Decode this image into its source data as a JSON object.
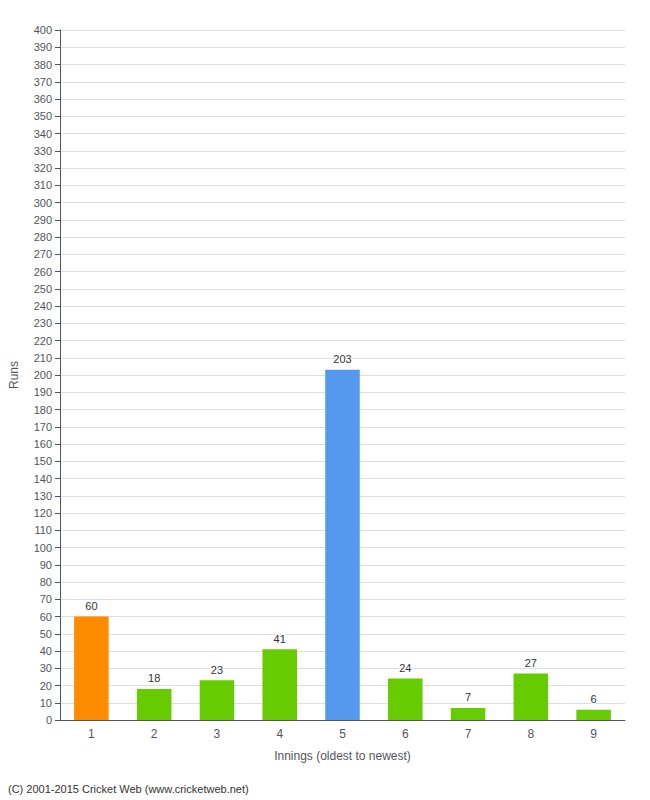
{
  "chart_data": {
    "type": "bar",
    "xlabel": "Innings (oldest to newest)",
    "ylabel": "Runs",
    "categories": [
      "1",
      "2",
      "3",
      "4",
      "5",
      "6",
      "7",
      "8",
      "9"
    ],
    "values": [
      60,
      18,
      23,
      41,
      203,
      24,
      7,
      27,
      6
    ],
    "colors": [
      "#ff8c00",
      "#66cc00",
      "#66cc00",
      "#66cc00",
      "#5599ee",
      "#66cc00",
      "#66cc00",
      "#66cc00",
      "#66cc00"
    ],
    "ylim": [
      0,
      400
    ],
    "yticks": [
      0,
      10,
      20,
      30,
      40,
      50,
      60,
      70,
      80,
      90,
      100,
      110,
      120,
      130,
      140,
      150,
      160,
      170,
      180,
      190,
      200,
      210,
      220,
      230,
      240,
      250,
      260,
      270,
      280,
      290,
      300,
      310,
      320,
      330,
      340,
      350,
      360,
      370,
      380,
      390,
      400
    ],
    "grid": true,
    "data_labels": true,
    "annotations": [
      "(C) 2001-2015 Cricket Web (www.cricketweb.net)"
    ]
  }
}
